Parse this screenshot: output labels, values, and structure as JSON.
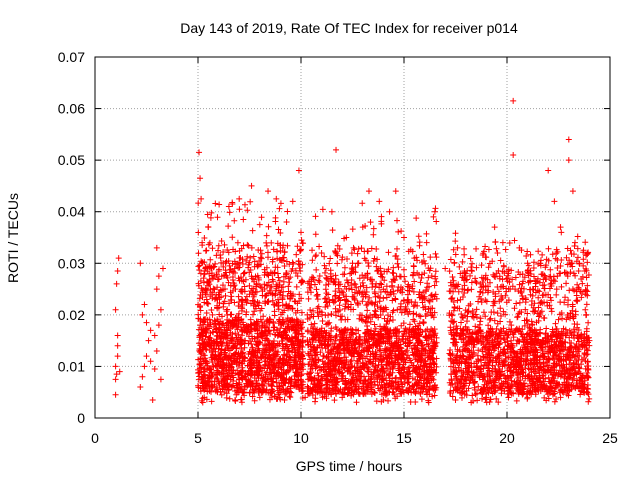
{
  "chart_data": {
    "type": "scatter",
    "title": "Day 143 of 2019, Rate Of TEC Index for receiver p014",
    "xlabel": "GPS time / hours",
    "ylabel": "ROTI / TECUs",
    "xlim": [
      0,
      25
    ],
    "ylim": [
      0,
      0.07
    ],
    "xticks": [
      0,
      5,
      10,
      15,
      20,
      25
    ],
    "xtick_labels": [
      "0",
      "5",
      "10",
      "15",
      "20",
      "25"
    ],
    "yticks": [
      0,
      0.01,
      0.02,
      0.03,
      0.04,
      0.05,
      0.06,
      0.07
    ],
    "ytick_labels": [
      "0",
      "0.01",
      "0.02",
      "0.03",
      "0.04",
      "0.05",
      "0.06",
      "0.07"
    ],
    "grid": true,
    "marker": "plus",
    "color": "#ff0000",
    "series": [
      {
        "name": "ROTI",
        "points": [
          [
            1.0,
            0.0045
          ],
          [
            1.0,
            0.0075
          ],
          [
            1.05,
            0.0085
          ],
          [
            1.1,
            0.012
          ],
          [
            1.1,
            0.016
          ],
          [
            1.0,
            0.021
          ],
          [
            1.05,
            0.026
          ],
          [
            1.1,
            0.0285
          ],
          [
            1.15,
            0.031
          ],
          [
            1.0,
            0.01
          ],
          [
            1.1,
            0.014
          ],
          [
            1.2,
            0.009
          ],
          [
            2.2,
            0.006
          ],
          [
            2.3,
            0.008
          ],
          [
            2.4,
            0.01
          ],
          [
            2.5,
            0.012
          ],
          [
            2.6,
            0.015
          ],
          [
            2.7,
            0.017
          ],
          [
            2.3,
            0.02
          ],
          [
            2.4,
            0.022
          ],
          [
            2.2,
            0.03
          ],
          [
            2.8,
            0.0035
          ],
          [
            2.9,
            0.0095
          ],
          [
            3.0,
            0.013
          ],
          [
            3.1,
            0.018
          ],
          [
            3.2,
            0.021
          ],
          [
            3.0,
            0.025
          ],
          [
            3.1,
            0.0275
          ],
          [
            3.3,
            0.029
          ],
          [
            3.0,
            0.033
          ],
          [
            2.5,
            0.0185
          ],
          [
            2.7,
            0.011
          ],
          [
            3.2,
            0.0075
          ],
          [
            2.9,
            0.016
          ],
          [
            5.05,
            0.0515
          ],
          [
            5.1,
            0.0465
          ],
          [
            5.15,
            0.0425
          ],
          [
            5.2,
            0.034
          ],
          [
            5.3,
            0.0285
          ],
          [
            5.5,
            0.037
          ],
          [
            6.5,
            0.041
          ],
          [
            7.0,
            0.0425
          ],
          [
            7.2,
            0.0385
          ],
          [
            7.6,
            0.045
          ],
          [
            8.0,
            0.0375
          ],
          [
            8.4,
            0.044
          ],
          [
            8.8,
            0.0425
          ],
          [
            9.3,
            0.038
          ],
          [
            9.6,
            0.042
          ],
          [
            9.9,
            0.048
          ],
          [
            10.0,
            0.036
          ],
          [
            10.4,
            0.0265
          ],
          [
            11.0,
            0.032
          ],
          [
            11.5,
            0.04
          ],
          [
            11.7,
            0.052
          ],
          [
            12.2,
            0.035
          ],
          [
            12.5,
            0.03
          ],
          [
            13.0,
            0.037
          ],
          [
            13.3,
            0.044
          ],
          [
            13.8,
            0.042
          ],
          [
            14.3,
            0.04
          ],
          [
            14.6,
            0.044
          ],
          [
            15.0,
            0.035
          ],
          [
            15.5,
            0.031
          ],
          [
            16.1,
            0.034
          ],
          [
            16.5,
            0.04
          ],
          [
            17.0,
            0.029
          ],
          [
            17.6,
            0.033
          ],
          [
            18.0,
            0.028
          ],
          [
            18.7,
            0.026
          ],
          [
            19.4,
            0.037
          ],
          [
            19.8,
            0.034
          ],
          [
            20.3,
            0.0615
          ],
          [
            20.3,
            0.051
          ],
          [
            20.6,
            0.033
          ],
          [
            21.0,
            0.03
          ],
          [
            21.5,
            0.027
          ],
          [
            22.0,
            0.048
          ],
          [
            22.3,
            0.042
          ],
          [
            22.6,
            0.037
          ],
          [
            23.0,
            0.054
          ],
          [
            23.0,
            0.05
          ],
          [
            23.2,
            0.044
          ],
          [
            23.3,
            0.034
          ],
          [
            23.5,
            0.025
          ],
          [
            23.8,
            0.021
          ],
          [
            24.0,
            0.015
          ],
          [
            5.3,
            0.004
          ],
          [
            6.8,
            0.0035
          ],
          [
            8.0,
            0.004
          ],
          [
            9.2,
            0.0035
          ],
          [
            10.2,
            0.004
          ],
          [
            12.0,
            0.004
          ],
          [
            14.0,
            0.0035
          ],
          [
            16.2,
            0.003
          ],
          [
            17.5,
            0.0035
          ],
          [
            19.0,
            0.004
          ],
          [
            21.0,
            0.004
          ],
          [
            22.6,
            0.004
          ],
          [
            23.7,
            0.005
          ]
        ],
        "clusters": [
          {
            "x_range": [
              5.0,
              10.1
            ],
            "y_range": [
              0.003,
              0.034
            ],
            "y_center": 0.012,
            "count": 1500,
            "seed": 11
          },
          {
            "x_range": [
              5.0,
              10.1
            ],
            "y_range": [
              0.02,
              0.042
            ],
            "y_center": 0.026,
            "count": 260,
            "seed": 12
          },
          {
            "x_range": [
              10.3,
              16.6
            ],
            "y_range": [
              0.003,
              0.033
            ],
            "y_center": 0.011,
            "count": 1600,
            "seed": 13
          },
          {
            "x_range": [
              10.3,
              16.6
            ],
            "y_range": [
              0.018,
              0.042
            ],
            "y_center": 0.024,
            "count": 240,
            "seed": 14
          },
          {
            "x_range": [
              17.2,
              24.0
            ],
            "y_range": [
              0.003,
              0.033
            ],
            "y_center": 0.011,
            "count": 1600,
            "seed": 15
          },
          {
            "x_range": [
              17.2,
              24.0
            ],
            "y_range": [
              0.018,
              0.036
            ],
            "y_center": 0.024,
            "count": 220,
            "seed": 16
          }
        ]
      }
    ]
  }
}
